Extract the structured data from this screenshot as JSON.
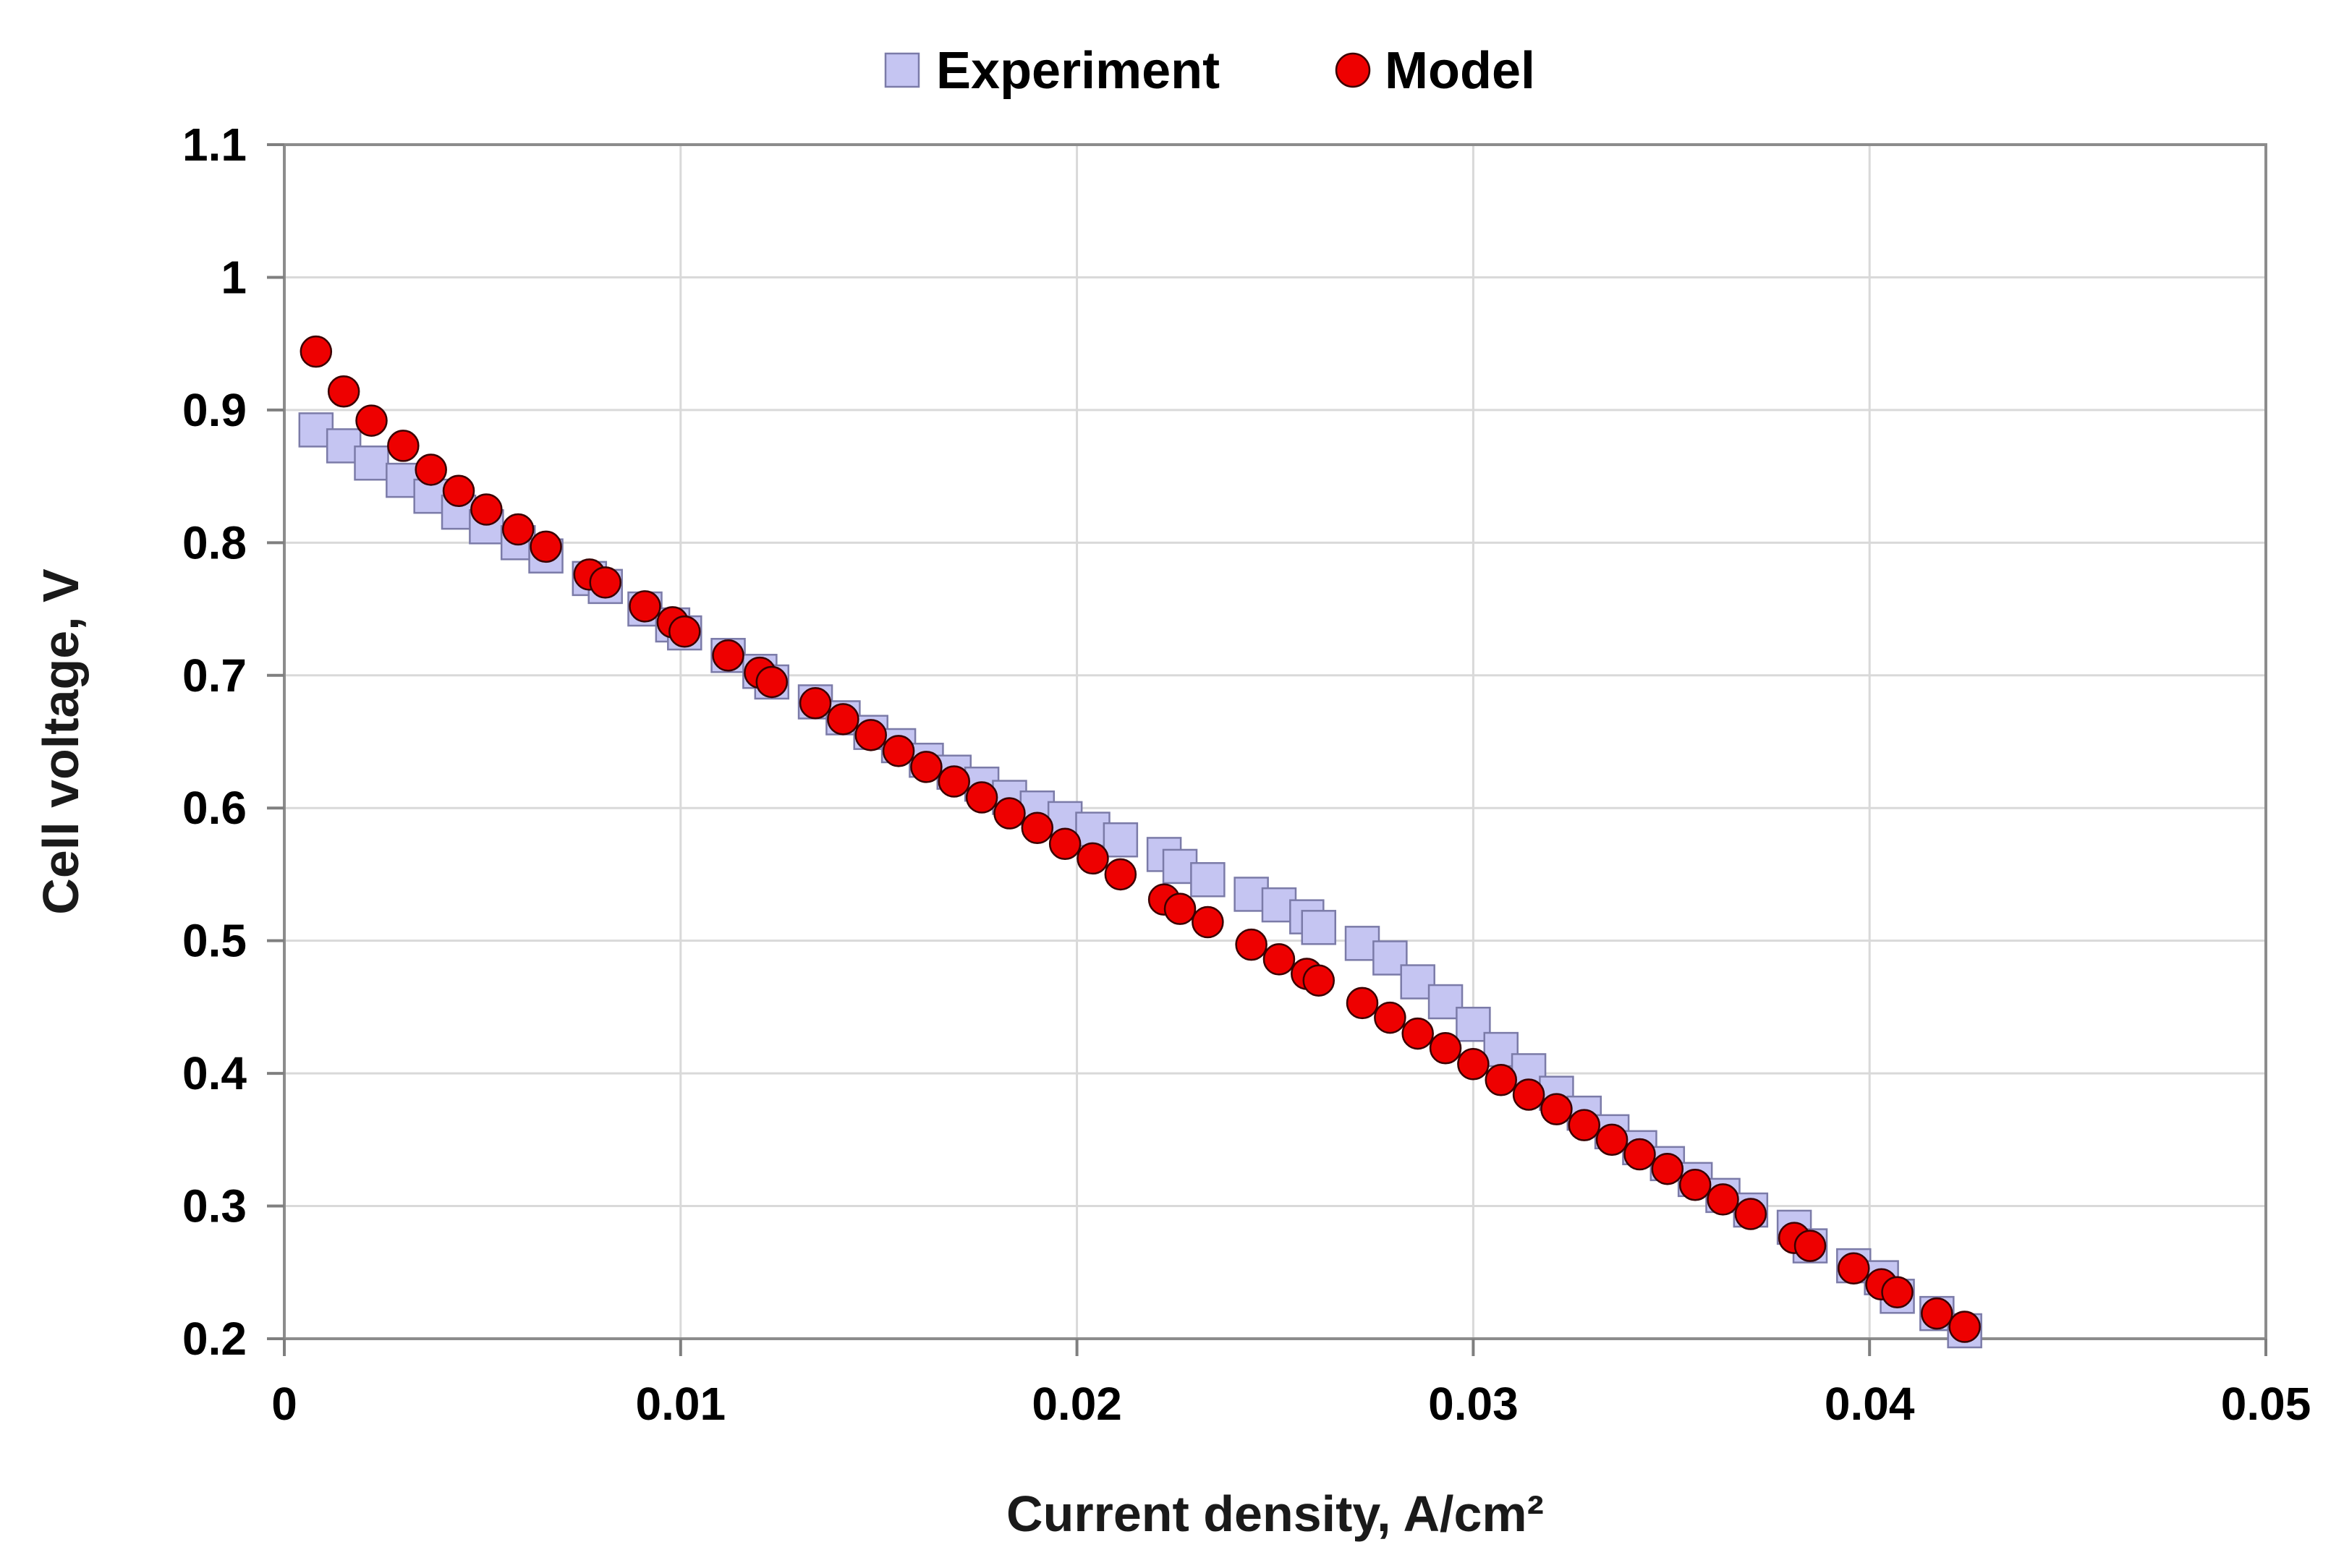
{
  "chart_data": {
    "type": "scatter",
    "title": "",
    "xlabel": "Current density, A/cm²",
    "ylabel": "Cell voltage, V",
    "xlim": [
      0,
      0.05
    ],
    "ylim": [
      0.2,
      1.1
    ],
    "xticks": [
      0,
      0.01,
      0.02,
      0.03,
      0.04,
      0.05
    ],
    "xtick_labels": [
      "0",
      "0.01",
      "0.02",
      "0.03",
      "0.04",
      "0.05"
    ],
    "yticks": [
      0.2,
      0.3,
      0.4,
      0.5,
      0.6,
      0.7,
      0.8,
      0.9,
      1.0,
      1.1
    ],
    "ytick_labels": [
      "0.2",
      "0.3",
      "0.4",
      "0.5",
      "0.6",
      "0.7",
      "0.8",
      "0.9",
      "1",
      "1.1"
    ],
    "grid": true,
    "legend_position": "top-center",
    "series": [
      {
        "name": "Experiment",
        "marker": "square",
        "color": "#c5c5f2",
        "stroke": "#7b7ba8",
        "x": [
          0.0008,
          0.0015,
          0.0022,
          0.003,
          0.0037,
          0.0044,
          0.0051,
          0.0059,
          0.0066,
          0.0077,
          0.0081,
          0.0091,
          0.0098,
          0.0101,
          0.0112,
          0.012,
          0.0123,
          0.0134,
          0.0141,
          0.0148,
          0.0155,
          0.0162,
          0.0169,
          0.0176,
          0.0183,
          0.019,
          0.0197,
          0.0204,
          0.0211,
          0.0222,
          0.0226,
          0.0233,
          0.0244,
          0.0251,
          0.0258,
          0.0261,
          0.0272,
          0.0279,
          0.0286,
          0.0293,
          0.03,
          0.0307,
          0.0314,
          0.0321,
          0.0328,
          0.0335,
          0.0342,
          0.0349,
          0.0356,
          0.0363,
          0.037,
          0.0381,
          0.0385,
          0.0396,
          0.0403,
          0.0407,
          0.0417,
          0.0424
        ],
        "y": [
          0.885,
          0.873,
          0.86,
          0.847,
          0.835,
          0.823,
          0.812,
          0.8,
          0.79,
          0.773,
          0.767,
          0.75,
          0.738,
          0.732,
          0.715,
          0.703,
          0.695,
          0.68,
          0.668,
          0.657,
          0.647,
          0.636,
          0.627,
          0.618,
          0.608,
          0.6,
          0.592,
          0.584,
          0.576,
          0.565,
          0.556,
          0.546,
          0.535,
          0.527,
          0.518,
          0.51,
          0.498,
          0.487,
          0.469,
          0.454,
          0.437,
          0.418,
          0.402,
          0.385,
          0.37,
          0.356,
          0.344,
          0.332,
          0.32,
          0.308,
          0.297,
          0.284,
          0.27,
          0.255,
          0.246,
          0.232,
          0.219,
          0.206
        ]
      },
      {
        "name": "Model",
        "marker": "circle",
        "color": "#ee0000",
        "stroke": "#3a0000",
        "x": [
          0.0008,
          0.0015,
          0.0022,
          0.003,
          0.0037,
          0.0044,
          0.0051,
          0.0059,
          0.0066,
          0.0077,
          0.0081,
          0.0091,
          0.0098,
          0.0101,
          0.0112,
          0.012,
          0.0123,
          0.0134,
          0.0141,
          0.0148,
          0.0155,
          0.0162,
          0.0169,
          0.0176,
          0.0183,
          0.019,
          0.0197,
          0.0204,
          0.0211,
          0.0222,
          0.0226,
          0.0233,
          0.0244,
          0.0251,
          0.0258,
          0.0261,
          0.0272,
          0.0279,
          0.0286,
          0.0293,
          0.03,
          0.0307,
          0.0314,
          0.0321,
          0.0328,
          0.0335,
          0.0342,
          0.0349,
          0.0356,
          0.0363,
          0.037,
          0.0381,
          0.0385,
          0.0396,
          0.0403,
          0.0407,
          0.0417,
          0.0424
        ],
        "y": [
          0.944,
          0.914,
          0.892,
          0.873,
          0.855,
          0.839,
          0.825,
          0.81,
          0.797,
          0.776,
          0.77,
          0.752,
          0.74,
          0.733,
          0.715,
          0.702,
          0.695,
          0.679,
          0.667,
          0.655,
          0.643,
          0.631,
          0.62,
          0.608,
          0.596,
          0.585,
          0.573,
          0.562,
          0.55,
          0.531,
          0.524,
          0.514,
          0.497,
          0.486,
          0.475,
          0.47,
          0.453,
          0.442,
          0.43,
          0.419,
          0.407,
          0.395,
          0.384,
          0.373,
          0.361,
          0.35,
          0.339,
          0.328,
          0.316,
          0.305,
          0.294,
          0.276,
          0.27,
          0.253,
          0.241,
          0.235,
          0.219,
          0.209
        ]
      }
    ]
  }
}
